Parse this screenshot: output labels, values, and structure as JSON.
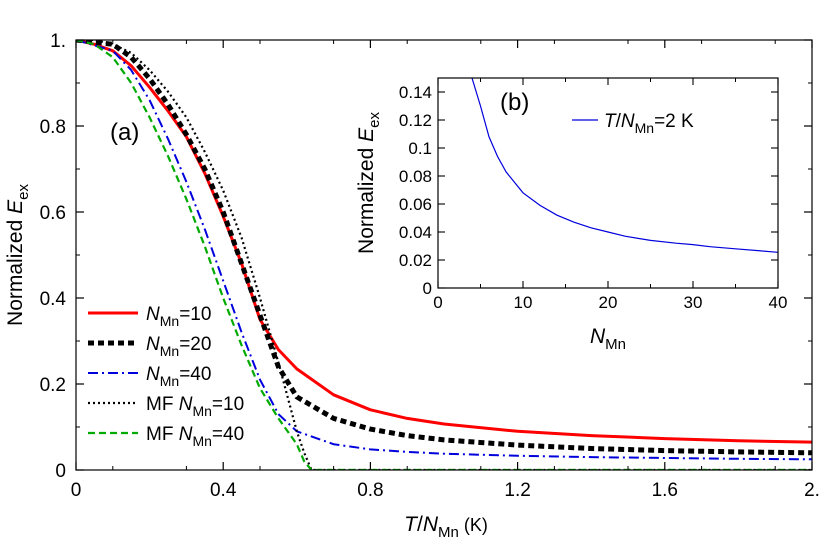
{
  "chart_data": [
    {
      "type": "line",
      "panel_label": "(a)",
      "xlabel": {
        "italic": "T",
        "sep": "/",
        "var": "N",
        "sub": "Mn",
        "unit": " (K)"
      },
      "ylabel": {
        "prefix": "Normalized ",
        "var": "E",
        "sub": "ex"
      },
      "xlim": [
        0,
        2.0
      ],
      "ylim": [
        0,
        1.0
      ],
      "x_ticks": [
        {
          "v": 0,
          "label": "0"
        },
        {
          "v": 0.4,
          "label": "0.4"
        },
        {
          "v": 0.8,
          "label": "0.8"
        },
        {
          "v": 1.2,
          "label": "1.2"
        },
        {
          "v": 1.6,
          "label": "1.6"
        },
        {
          "v": 2.0,
          "label": "2."
        }
      ],
      "y_ticks": [
        {
          "v": 0,
          "label": "0"
        },
        {
          "v": 0.2,
          "label": "0.2"
        },
        {
          "v": 0.4,
          "label": "0.4"
        },
        {
          "v": 0.6,
          "label": "0.6"
        },
        {
          "v": 0.8,
          "label": "0.8"
        },
        {
          "v": 1.0,
          "label": "1."
        }
      ],
      "grid": false,
      "legend_position": "lower-left",
      "series": [
        {
          "label": {
            "pre": "",
            "var": "N",
            "sub": "Mn",
            "post": "=10"
          },
          "color": "#ff0000",
          "dash": "",
          "width": 3,
          "x": [
            0,
            0.05,
            0.1,
            0.15,
            0.2,
            0.25,
            0.3,
            0.35,
            0.4,
            0.45,
            0.5,
            0.55,
            0.6,
            0.7,
            0.8,
            0.9,
            1.0,
            1.2,
            1.4,
            1.6,
            1.8,
            2.0
          ],
          "y": [
            1.0,
            0.99,
            0.975,
            0.94,
            0.89,
            0.835,
            0.775,
            0.69,
            0.59,
            0.48,
            0.35,
            0.28,
            0.235,
            0.175,
            0.14,
            0.12,
            0.107,
            0.09,
            0.08,
            0.073,
            0.068,
            0.065
          ]
        },
        {
          "label": {
            "pre": "",
            "var": "N",
            "sub": "Mn",
            "post": "=20"
          },
          "color": "#000000",
          "dash": "6,4",
          "width": 5,
          "x": [
            0,
            0.1,
            0.15,
            0.2,
            0.25,
            0.3,
            0.35,
            0.4,
            0.45,
            0.5,
            0.55,
            0.6,
            0.7,
            0.8,
            0.9,
            1.0,
            1.2,
            1.4,
            1.6,
            1.8,
            2.0
          ],
          "y": [
            1.0,
            0.99,
            0.96,
            0.91,
            0.85,
            0.78,
            0.7,
            0.6,
            0.48,
            0.36,
            0.24,
            0.17,
            0.12,
            0.095,
            0.08,
            0.07,
            0.058,
            0.05,
            0.045,
            0.042,
            0.04
          ]
        },
        {
          "label": {
            "pre": "",
            "var": "N",
            "sub": "Mn",
            "post": "=40"
          },
          "color": "#0000dd",
          "dash": "10,4,2,4",
          "width": 2,
          "x": [
            0,
            0.1,
            0.15,
            0.2,
            0.25,
            0.3,
            0.35,
            0.4,
            0.45,
            0.5,
            0.55,
            0.6,
            0.7,
            0.8,
            0.9,
            1.0,
            1.2,
            1.4,
            1.6,
            1.8,
            2.0
          ],
          "y": [
            1.0,
            0.975,
            0.93,
            0.86,
            0.77,
            0.67,
            0.56,
            0.44,
            0.32,
            0.21,
            0.13,
            0.09,
            0.06,
            0.048,
            0.042,
            0.038,
            0.033,
            0.03,
            0.028,
            0.026,
            0.025
          ]
        },
        {
          "label": {
            "pre": "MF ",
            "var": "N",
            "sub": "Mn",
            "post": "=10"
          },
          "color": "#000000",
          "dash": "2,3",
          "width": 2.2,
          "x": [
            0,
            0.05,
            0.1,
            0.15,
            0.2,
            0.25,
            0.3,
            0.35,
            0.4,
            0.45,
            0.5,
            0.55,
            0.6,
            0.62,
            0.64,
            0.7,
            0.8,
            1.2,
            1.6,
            2.0
          ],
          "y": [
            1.0,
            1.0,
            0.99,
            0.97,
            0.93,
            0.88,
            0.82,
            0.74,
            0.65,
            0.54,
            0.4,
            0.25,
            0.09,
            0.04,
            0.0,
            0.0,
            0.0,
            0.0,
            0.0,
            0.0
          ]
        },
        {
          "label": {
            "pre": "MF ",
            "var": "N",
            "sub": "Mn",
            "post": "=40"
          },
          "color": "#00aa00",
          "dash": "7,4",
          "width": 2.2,
          "x": [
            0,
            0.05,
            0.1,
            0.15,
            0.2,
            0.25,
            0.3,
            0.35,
            0.4,
            0.45,
            0.5,
            0.55,
            0.6,
            0.62,
            0.64,
            0.7,
            0.8,
            1.2,
            1.6,
            2.0
          ],
          "y": [
            1.0,
            0.99,
            0.96,
            0.9,
            0.82,
            0.73,
            0.63,
            0.52,
            0.4,
            0.29,
            0.19,
            0.12,
            0.06,
            0.02,
            0.0,
            0.0,
            0.0,
            0.0,
            0.0,
            0.0
          ]
        }
      ]
    },
    {
      "type": "line",
      "panel_label": "(b)",
      "xlabel": {
        "italic": "",
        "sep": "",
        "var": "N",
        "sub": "Mn",
        "unit": ""
      },
      "ylabel": {
        "prefix": "Normalized ",
        "var": "E",
        "sub": "ex"
      },
      "xlim": [
        0,
        40
      ],
      "ylim": [
        0,
        0.15
      ],
      "x_ticks": [
        {
          "v": 0,
          "label": "0"
        },
        {
          "v": 10,
          "label": "10"
        },
        {
          "v": 20,
          "label": "20"
        },
        {
          "v": 30,
          "label": "30"
        },
        {
          "v": 40,
          "label": "40"
        }
      ],
      "y_ticks": [
        {
          "v": 0,
          "label": "0"
        },
        {
          "v": 0.02,
          "label": "0.02"
        },
        {
          "v": 0.04,
          "label": "0.04"
        },
        {
          "v": 0.06,
          "label": "0.06"
        },
        {
          "v": 0.08,
          "label": "0.08"
        },
        {
          "v": 0.1,
          "label": "0.1"
        },
        {
          "v": 0.12,
          "label": "0.12"
        },
        {
          "v": 0.14,
          "label": "0.14"
        }
      ],
      "grid": false,
      "legend_position": "top-right",
      "series": [
        {
          "label": {
            "pre": "",
            "italic": "T",
            "sep": "/",
            "var": "N",
            "sub": "Mn",
            "post": "=2 K"
          },
          "color": "#0000dd",
          "dash": "",
          "width": 1.2,
          "x": [
            4,
            5,
            6,
            7,
            8,
            10,
            12,
            14,
            16,
            18,
            20,
            22,
            25,
            28,
            30,
            32,
            35,
            38,
            40
          ],
          "y": [
            0.15,
            0.13,
            0.108,
            0.094,
            0.083,
            0.068,
            0.059,
            0.052,
            0.047,
            0.043,
            0.04,
            0.037,
            0.034,
            0.032,
            0.031,
            0.0295,
            0.028,
            0.0265,
            0.0255
          ]
        }
      ]
    }
  ]
}
